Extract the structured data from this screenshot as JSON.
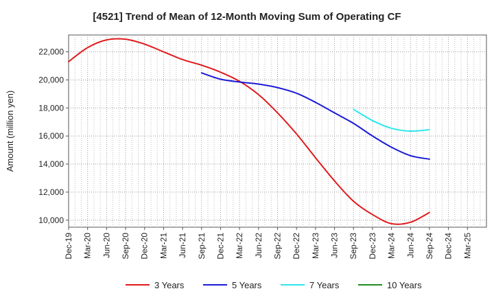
{
  "chart_data": {
    "type": "line",
    "title": "[4521]  Trend of Mean of 12-Month Moving Sum of Operating CF",
    "ylabel": "Amount (million yen)",
    "xlabel": "",
    "ylim": [
      9500,
      23200
    ],
    "yticks": [
      10000,
      12000,
      14000,
      16000,
      18000,
      20000,
      22000
    ],
    "ytick_labels": [
      "10,000",
      "12,000",
      "14,000",
      "16,000",
      "18,000",
      "20,000",
      "22,000"
    ],
    "categories": [
      "Dec-19",
      "Mar-20",
      "Jun-20",
      "Sep-20",
      "Dec-20",
      "Mar-21",
      "Jun-21",
      "Sep-21",
      "Dec-21",
      "Mar-22",
      "Jun-22",
      "Sep-22",
      "Dec-22",
      "Mar-23",
      "Jun-23",
      "Sep-23",
      "Dec-23",
      "Mar-24",
      "Jun-24",
      "Sep-24",
      "Dec-24",
      "Mar-25"
    ],
    "grid": true,
    "legend_position": "bottom",
    "series": [
      {
        "name": "3 Years",
        "color": "#e0191b",
        "values": [
          21300,
          22300,
          22850,
          22900,
          22550,
          22000,
          21450,
          21050,
          20550,
          19900,
          18950,
          17650,
          16150,
          14450,
          12800,
          11350,
          10400,
          9750,
          9850,
          10550,
          null,
          null
        ]
      },
      {
        "name": "5 Years",
        "color": "#1a1ad6",
        "values": [
          null,
          null,
          null,
          null,
          null,
          null,
          null,
          20500,
          20050,
          19850,
          19700,
          19450,
          19050,
          18400,
          17650,
          16900,
          16000,
          15200,
          14600,
          14350,
          null,
          null
        ]
      },
      {
        "name": "7 Years",
        "color": "#2ee6ee",
        "values": [
          null,
          null,
          null,
          null,
          null,
          null,
          null,
          null,
          null,
          null,
          null,
          null,
          null,
          null,
          null,
          17900,
          17100,
          16550,
          16350,
          16450,
          null,
          null
        ]
      },
      {
        "name": "10 Years",
        "color": "#1e8c1e",
        "values": [
          null,
          null,
          null,
          null,
          null,
          null,
          null,
          null,
          null,
          null,
          null,
          null,
          null,
          null,
          null,
          null,
          null,
          null,
          null,
          null,
          null,
          null
        ]
      }
    ]
  }
}
